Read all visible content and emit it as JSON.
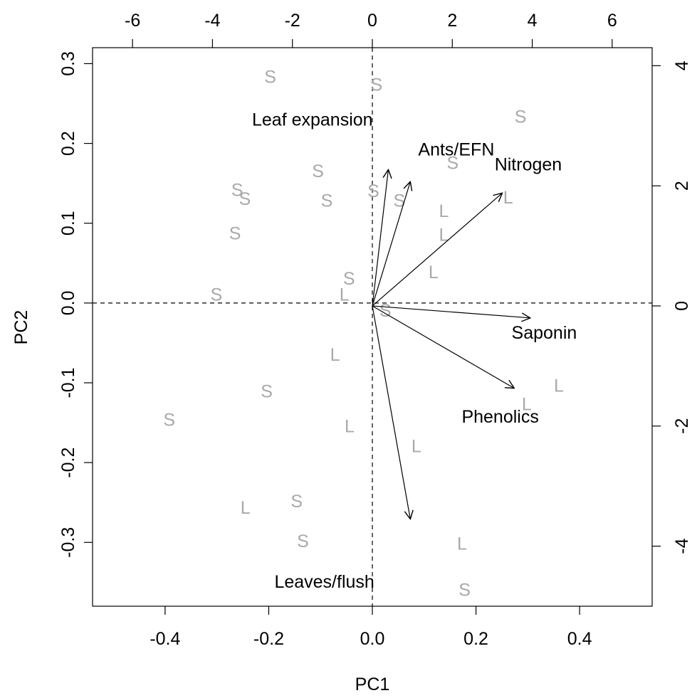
{
  "chart_data": {
    "type": "scatter",
    "subtype": "PCA biplot",
    "title": "",
    "xlabel": "PC1",
    "ylabel": "PC2",
    "xlim": [
      -0.54,
      0.54
    ],
    "ylim": [
      -0.38,
      0.32
    ],
    "x_ticks": [
      -0.4,
      -0.2,
      0.0,
      0.2,
      0.4
    ],
    "x_tick_labels": [
      "-0.4",
      "-0.2",
      "0.0",
      "0.2",
      "0.4"
    ],
    "y_ticks": [
      -0.3,
      -0.2,
      -0.1,
      0.0,
      0.1,
      0.2,
      0.3
    ],
    "y_tick_labels": [
      "-0.3",
      "-0.2",
      "-0.1",
      "0.0",
      "0.1",
      "0.2",
      "0.3"
    ],
    "loadings_xlim": [
      -7.0,
      7.0
    ],
    "loadings_ylim": [
      -5.0,
      4.3
    ],
    "top_ticks": [
      -6,
      -4,
      -2,
      0,
      2,
      4,
      6
    ],
    "top_tick_labels": [
      "-6",
      "-4",
      "-2",
      "0",
      "2",
      "4",
      "6"
    ],
    "right_ticks": [
      -4,
      -2,
      0,
      2,
      4
    ],
    "right_tick_labels": [
      "-4",
      "-2",
      "0",
      "2",
      "4"
    ],
    "reference_lines": {
      "x": 0,
      "y": 0,
      "style": "dashed"
    },
    "observation_color": "#a9a9a9",
    "arrow_color": "#000000",
    "observations": [
      {
        "label": "S",
        "x": -0.197,
        "y": 0.283
      },
      {
        "label": "S",
        "x": 0.008,
        "y": 0.273
      },
      {
        "label": "S",
        "x": 0.286,
        "y": 0.233
      },
      {
        "label": "S",
        "x": 0.155,
        "y": 0.175
      },
      {
        "label": "S",
        "x": -0.105,
        "y": 0.165
      },
      {
        "label": "S",
        "x": -0.261,
        "y": 0.141
      },
      {
        "label": "S",
        "x": -0.246,
        "y": 0.13
      },
      {
        "label": "S",
        "x": -0.088,
        "y": 0.128
      },
      {
        "label": "S",
        "x": 0.002,
        "y": 0.14
      },
      {
        "label": "S",
        "x": 0.052,
        "y": 0.128
      },
      {
        "label": "L",
        "x": 0.262,
        "y": 0.132
      },
      {
        "label": "L",
        "x": 0.138,
        "y": 0.115
      },
      {
        "label": "S",
        "x": -0.265,
        "y": 0.087
      },
      {
        "label": "L",
        "x": 0.138,
        "y": 0.085
      },
      {
        "label": "L",
        "x": 0.118,
        "y": 0.038
      },
      {
        "label": "S",
        "x": -0.045,
        "y": 0.03
      },
      {
        "label": "S",
        "x": -0.301,
        "y": 0.01
      },
      {
        "label": "L",
        "x": -0.054,
        "y": 0.01
      },
      {
        "label": "S",
        "x": 0.025,
        "y": -0.01
      },
      {
        "label": "L",
        "x": -0.072,
        "y": -0.065
      },
      {
        "label": "S",
        "x": -0.204,
        "y": -0.111
      },
      {
        "label": "L",
        "x": 0.36,
        "y": -0.104
      },
      {
        "label": "L",
        "x": 0.298,
        "y": -0.127
      },
      {
        "label": "S",
        "x": -0.392,
        "y": -0.147
      },
      {
        "label": "L",
        "x": -0.044,
        "y": -0.155
      },
      {
        "label": "L",
        "x": 0.085,
        "y": -0.18
      },
      {
        "label": "S",
        "x": -0.146,
        "y": -0.249
      },
      {
        "label": "L",
        "x": -0.245,
        "y": -0.257
      },
      {
        "label": "S",
        "x": -0.134,
        "y": -0.299
      },
      {
        "label": "L",
        "x": 0.173,
        "y": -0.302
      },
      {
        "label": "S",
        "x": 0.178,
        "y": -0.36
      }
    ],
    "variables": [
      {
        "name": "Leaf expansion",
        "x": 0.4,
        "y": 2.27,
        "label_x": -1.5,
        "label_y": 3.1
      },
      {
        "name": "Ants/EFN",
        "x": 0.95,
        "y": 2.07,
        "label_x": 2.1,
        "label_y": 2.6
      },
      {
        "name": "Nitrogen",
        "x": 3.25,
        "y": 1.88,
        "label_x": 3.9,
        "label_y": 2.35
      },
      {
        "name": "Saponin",
        "x": 3.95,
        "y": -0.2,
        "label_x": 4.3,
        "label_y": -0.45
      },
      {
        "name": "Phenolics",
        "x": 3.55,
        "y": -1.37,
        "label_x": 3.2,
        "label_y": -1.85
      },
      {
        "name": "Leaves/flush",
        "x": 0.95,
        "y": -3.55,
        "label_x": -1.2,
        "label_y": -4.6
      }
    ]
  }
}
